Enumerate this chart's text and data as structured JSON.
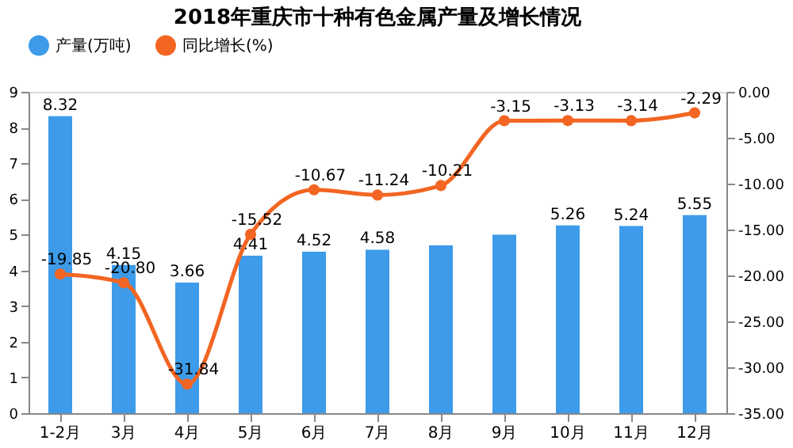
{
  "chart_data": {
    "type": "bar",
    "title": "2018年重庆市十种有色金属产量及增长情况",
    "categories": [
      "1-2月",
      "3月",
      "4月",
      "5月",
      "6月",
      "7月",
      "8月",
      "9月",
      "10月",
      "11月",
      "12月"
    ],
    "series": [
      {
        "name": "产量(万吨)",
        "type": "bar",
        "color": "#3d9be9",
        "values": [
          8.32,
          4.15,
          3.66,
          4.41,
          4.52,
          4.58,
          4.7,
          5.0,
          5.26,
          5.24,
          5.55
        ],
        "value_labels": [
          "8.32",
          "4.15",
          "3.66",
          "4.41",
          "4.52",
          "4.58",
          null,
          null,
          "5.26",
          "5.24",
          "5.55"
        ]
      },
      {
        "name": "同比增长(%)",
        "type": "line",
        "axis": "y2",
        "color": "#f26522",
        "marker": "circle",
        "values": [
          -19.85,
          -20.8,
          -31.84,
          -15.52,
          -10.67,
          -11.24,
          -10.21,
          -3.15,
          -3.13,
          -3.14,
          -2.29
        ],
        "value_labels": [
          "-19.85",
          "-20.80",
          "-31.84",
          "-15.52",
          "-10.67",
          "-11.24",
          "-10.21",
          "-3.15",
          "-3.13",
          "-3.14",
          "-2.29"
        ]
      }
    ],
    "ylim": [
      0,
      9
    ],
    "yticks": [
      0,
      1,
      2,
      3,
      4,
      5,
      6,
      7,
      8,
      9
    ],
    "y2lim": [
      -35,
      0
    ],
    "y2ticks": [
      {
        "value": -35,
        "label": "-35.00"
      },
      {
        "value": -30,
        "label": "-30.00"
      },
      {
        "value": -25,
        "label": "-25.00"
      },
      {
        "value": -20,
        "label": "-20.00"
      },
      {
        "value": -15,
        "label": "-15.00"
      },
      {
        "value": -10,
        "label": "-10.00"
      },
      {
        "value": -5,
        "label": "-5.00"
      },
      {
        "value": 0,
        "label": "0.00"
      }
    ],
    "grid": false,
    "legend": "top"
  }
}
